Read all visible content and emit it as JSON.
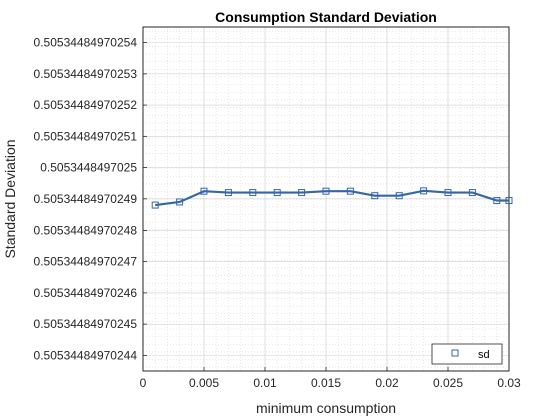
{
  "chart_data": {
    "type": "line",
    "title": "Consumption Standard Deviation",
    "xlabel": "minimum consumption",
    "ylabel": "Standard Deviation",
    "xlim": [
      0,
      0.03
    ],
    "ylim": [
      0.505344849702435,
      0.505344849702545
    ],
    "x_ticks": [
      0,
      0.005,
      0.01,
      0.015,
      0.02,
      0.025,
      0.03
    ],
    "x_tick_labels": [
      "0",
      "0.005",
      "0.01",
      "0.015",
      "0.02",
      "0.025",
      "0.03"
    ],
    "y_ticks": [
      0.50534484970244,
      0.50534484970245,
      0.50534484970246,
      0.50534484970247,
      0.50534484970248,
      0.50534484970249,
      0.5053448497025,
      0.50534484970251,
      0.50534484970252,
      0.50534484970253,
      0.50534484970254
    ],
    "y_tick_labels": [
      "0.50534484970244",
      "0.50534484970245",
      "0.50534484970246",
      "0.50534484970247",
      "0.50534484970248",
      "0.50534484970249",
      "0.5053448497025",
      "0.50534484970251",
      "0.50534484970252",
      "0.50534484970253",
      "0.50534484970254"
    ],
    "grid": true,
    "minor_grid": true,
    "legend_position": "bottom-right",
    "series": [
      {
        "name": "sd",
        "color": "#3466a8",
        "marker": "square",
        "x": [
          0.001,
          0.003,
          0.005,
          0.007,
          0.009,
          0.011,
          0.013,
          0.015,
          0.017,
          0.019,
          0.021,
          0.023,
          0.025,
          0.027,
          0.029,
          0.03
        ],
        "y": [
          0.505344849702488,
          0.505344849702489,
          0.5053448497024925,
          0.505344849702492,
          0.505344849702492,
          0.505344849702492,
          0.505344849702492,
          0.5053448497024925,
          0.5053448497024925,
          0.505344849702491,
          0.505344849702491,
          0.5053448497024926,
          0.505344849702492,
          0.505344849702492,
          0.5053448497024895,
          0.5053448497024895
        ]
      }
    ]
  }
}
